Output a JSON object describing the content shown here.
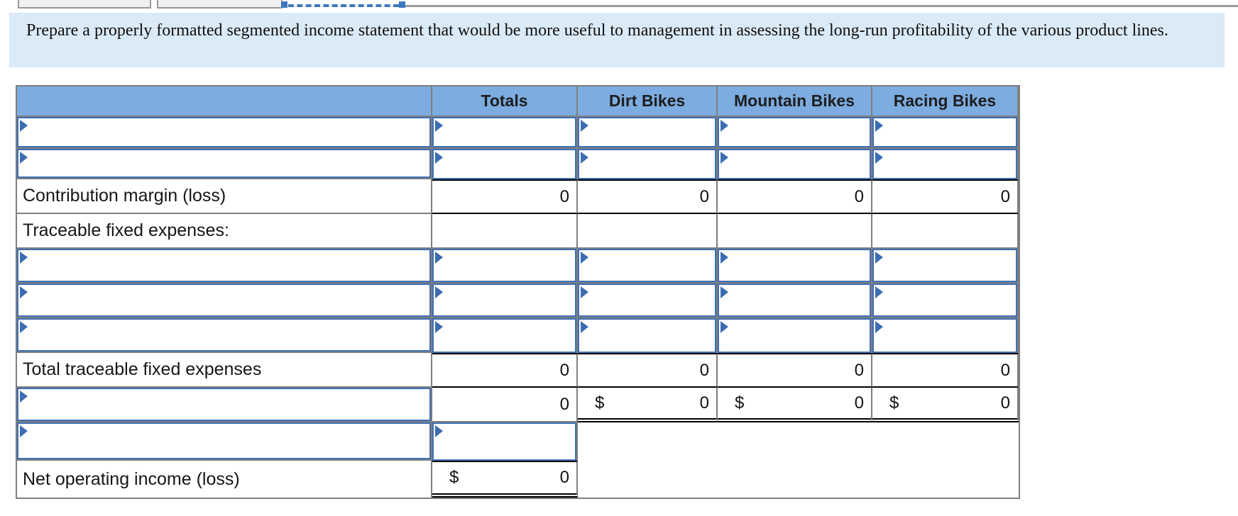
{
  "instruction": {
    "text": "Prepare a properly formatted segmented income statement that would be more useful to management in assessing the long-run profitability of the various product lines."
  },
  "table": {
    "headers": {
      "totals": "Totals",
      "dirt_bikes": "Dirt Bikes",
      "mountain_bikes": "Mountain Bikes",
      "racing_bikes": "Racing Bikes"
    },
    "contribution_margin": {
      "label": "Contribution margin (loss)",
      "values": [
        "0",
        "0",
        "0",
        "0"
      ]
    },
    "traceable_section": {
      "label": "Traceable fixed expenses:"
    },
    "total_traceable": {
      "label": "Total traceable fixed expenses",
      "values": [
        "0",
        "0",
        "0",
        "0"
      ]
    },
    "segment_margin": {
      "totals_value": "0",
      "currency": "$",
      "values": [
        "0",
        "0",
        "0"
      ]
    },
    "net_operating": {
      "label": "Net operating income (loss)",
      "currency": "$",
      "value": "0"
    }
  },
  "colors": {
    "header_bg": "#7cace0",
    "input_border": "#4070b4",
    "flag_blue": "#3c6db2",
    "selection_blue": "#3c78c0",
    "instruction_bg": "#daeaf7",
    "grid_gray": "#7f7f7f",
    "total_line": "#000000"
  }
}
